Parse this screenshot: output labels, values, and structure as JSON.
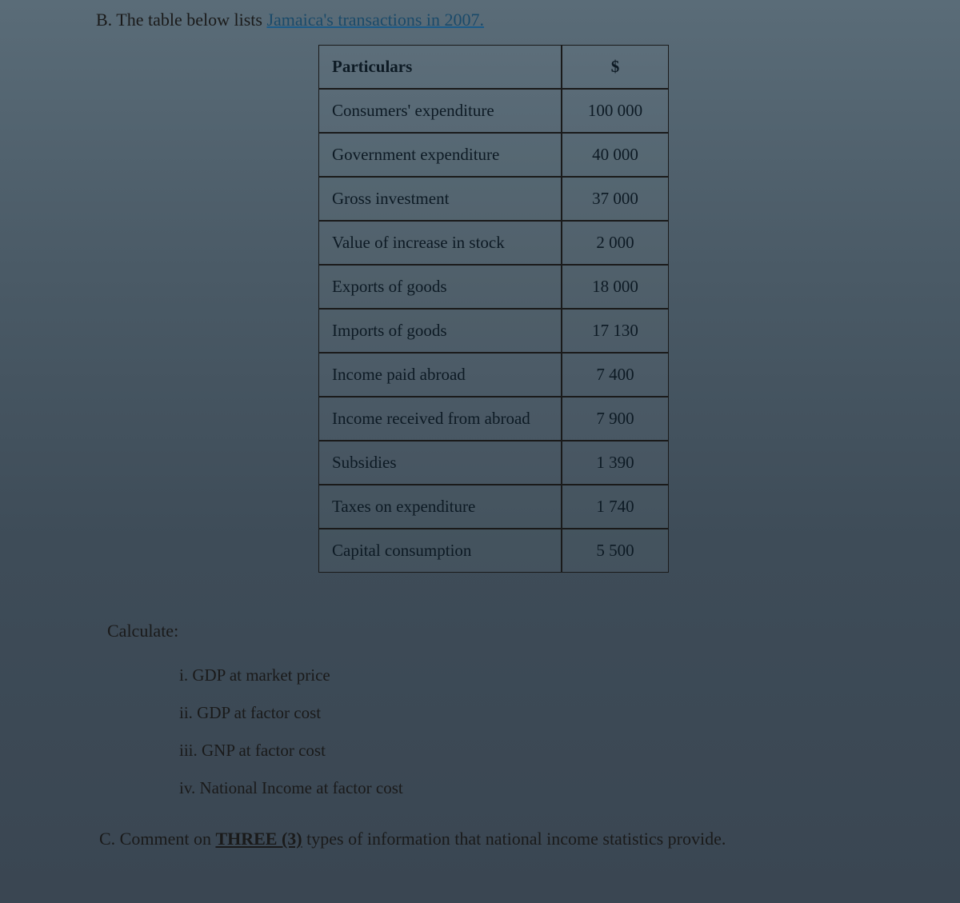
{
  "sectionB": {
    "label": "B. The table below lists ",
    "underlined": "Jamaica's transactions in 2007.",
    "table": {
      "columns": [
        "Particulars",
        "$"
      ],
      "rows": [
        [
          "Consumers' expenditure",
          "100 000"
        ],
        [
          "Government expenditure",
          "40 000"
        ],
        [
          "Gross investment",
          "37 000"
        ],
        [
          "Value of increase in stock",
          "2 000"
        ],
        [
          "Exports of goods",
          "18 000"
        ],
        [
          "Imports of goods",
          "17 130"
        ],
        [
          "Income paid abroad",
          "7 400"
        ],
        [
          "Income received from abroad",
          "7 900"
        ],
        [
          "Subsidies",
          "1 390"
        ],
        [
          "Taxes on expenditure",
          "1 740"
        ],
        [
          "Capital consumption",
          "5 500"
        ]
      ]
    }
  },
  "calculate": {
    "heading": "Calculate:",
    "items": [
      "i. GDP at market price",
      "ii. GDP at factor cost",
      "iii. GNP at factor cost",
      "iv. National Income at factor cost"
    ]
  },
  "sectionC": {
    "prefix": "C. Comment on ",
    "three": "THREE (3)",
    "suffix": " types of information that national income statistics provide."
  }
}
